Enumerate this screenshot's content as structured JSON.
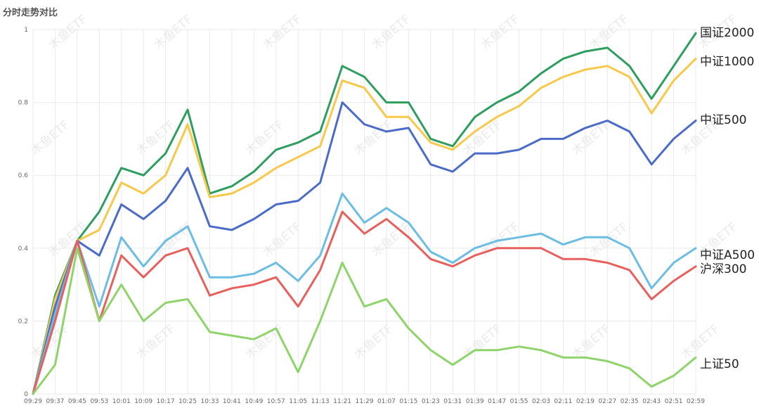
{
  "chart_data": {
    "type": "line",
    "title": "分时走势对比",
    "watermark": "木鱼ETF",
    "ylim": [
      0,
      1
    ],
    "y_ticks": [
      "0",
      "0.2",
      "0.4",
      "0.6",
      "0.8",
      "1"
    ],
    "x_ticks": [
      "09:29",
      "09:37",
      "09:45",
      "09:53",
      "10:01",
      "10:09",
      "10:17",
      "10:25",
      "10:33",
      "10:41",
      "10:49",
      "10:57",
      "11:05",
      "11:13",
      "11:21",
      "11:29",
      "01:07",
      "01:15",
      "01:23",
      "01:31",
      "01:39",
      "01:47",
      "01:55",
      "02:03",
      "02:11",
      "02:19",
      "02:27",
      "02:35",
      "02:43",
      "02:51",
      "02:59"
    ],
    "x": [
      "09:29",
      "09:37",
      "09:45",
      "09:53",
      "10:01",
      "10:09",
      "10:17",
      "10:25",
      "10:33",
      "10:41",
      "10:49",
      "10:57",
      "11:05",
      "11:13",
      "11:21",
      "11:29",
      "01:07",
      "01:15",
      "01:23",
      "01:31",
      "01:39",
      "01:47",
      "01:55",
      "02:03",
      "02:11",
      "02:19",
      "02:27",
      "02:35",
      "02:43",
      "02:51",
      "02:59"
    ],
    "grid": true,
    "legend": "series labels at right end of lines",
    "series": [
      {
        "name": "国证2000",
        "color": "#2e9e5e",
        "values": [
          0.0,
          0.27,
          0.42,
          0.5,
          0.62,
          0.6,
          0.66,
          0.78,
          0.55,
          0.57,
          0.61,
          0.67,
          0.69,
          0.72,
          0.9,
          0.87,
          0.8,
          0.8,
          0.7,
          0.68,
          0.76,
          0.8,
          0.83,
          0.88,
          0.92,
          0.94,
          0.95,
          0.9,
          0.81,
          0.9,
          0.99
        ]
      },
      {
        "name": "中证1000",
        "color": "#f7c84a",
        "values": [
          0.0,
          0.26,
          0.42,
          0.45,
          0.58,
          0.55,
          0.6,
          0.74,
          0.54,
          0.55,
          0.58,
          0.62,
          0.65,
          0.68,
          0.86,
          0.84,
          0.76,
          0.76,
          0.69,
          0.67,
          0.72,
          0.76,
          0.79,
          0.84,
          0.87,
          0.89,
          0.9,
          0.87,
          0.77,
          0.86,
          0.92
        ]
      },
      {
        "name": "中证500",
        "color": "#4a6cc8",
        "values": [
          0.0,
          0.24,
          0.42,
          0.38,
          0.52,
          0.48,
          0.53,
          0.62,
          0.46,
          0.45,
          0.48,
          0.52,
          0.53,
          0.58,
          0.8,
          0.74,
          0.72,
          0.73,
          0.63,
          0.61,
          0.66,
          0.66,
          0.67,
          0.7,
          0.7,
          0.73,
          0.75,
          0.72,
          0.63,
          0.7,
          0.75
        ]
      },
      {
        "name": "中证A500",
        "color": "#6bbde3",
        "values": [
          0.0,
          0.22,
          0.42,
          0.24,
          0.43,
          0.35,
          0.42,
          0.46,
          0.32,
          0.32,
          0.33,
          0.36,
          0.31,
          0.38,
          0.55,
          0.47,
          0.51,
          0.47,
          0.39,
          0.36,
          0.4,
          0.42,
          0.43,
          0.44,
          0.41,
          0.43,
          0.43,
          0.4,
          0.29,
          0.36,
          0.4
        ]
      },
      {
        "name": "沪深300",
        "color": "#e8605c",
        "values": [
          0.0,
          0.2,
          0.42,
          0.2,
          0.38,
          0.32,
          0.38,
          0.4,
          0.27,
          0.29,
          0.3,
          0.32,
          0.24,
          0.34,
          0.5,
          0.44,
          0.48,
          0.43,
          0.37,
          0.35,
          0.38,
          0.4,
          0.4,
          0.4,
          0.37,
          0.37,
          0.36,
          0.34,
          0.26,
          0.31,
          0.35
        ]
      },
      {
        "name": "上证50",
        "color": "#8ed46a",
        "values": [
          0.0,
          0.08,
          0.4,
          0.2,
          0.3,
          0.2,
          0.25,
          0.26,
          0.17,
          0.16,
          0.15,
          0.18,
          0.06,
          0.2,
          0.36,
          0.24,
          0.26,
          0.18,
          0.12,
          0.08,
          0.12,
          0.12,
          0.13,
          0.12,
          0.1,
          0.1,
          0.09,
          0.07,
          0.02,
          0.05,
          0.1
        ]
      }
    ]
  }
}
